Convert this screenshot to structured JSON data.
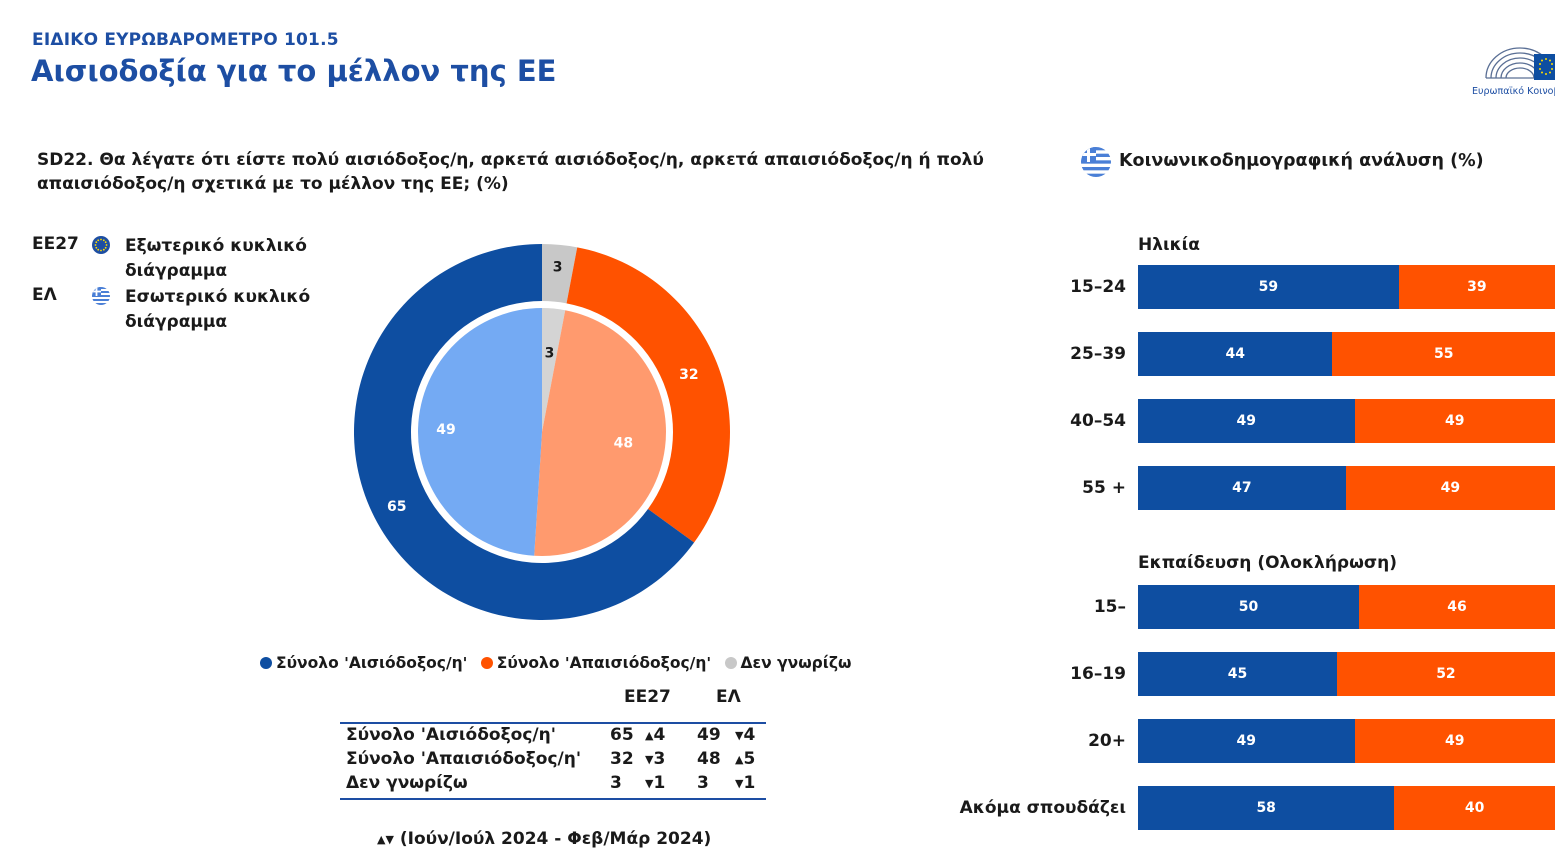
{
  "header": {
    "supertitle": "ΕΙΔΙΚΟ ΕΥΡΩΒΑΡΟΜΕΤΡΟ 101.5",
    "title": "Αισιοδοξία για το μέλλον της ΕΕ",
    "logo_text": "Ευρωπαϊκό Κοινοβούλιο"
  },
  "question": "SD22. Θα λέγατε ότι είστε πολύ αισιόδοξος/η, αρκετά αισιόδοξος/η, αρκετά απαισιόδοξος/η ή πολύ απαισιόδοξος/η σχετικά με το μέλλον της ΕΕ; (%)",
  "ring_legend": [
    {
      "label": "ΕΕ27",
      "icon": "eu-flag-icon",
      "text": "Εξωτερικό κυκλικό διάγραμμα"
    },
    {
      "label": "ΕΛ",
      "icon": "greek-flag-icon",
      "text": "Εσωτερικό κυκλικό διάγραμμα"
    }
  ],
  "colors": {
    "optimistic_outer": "#0e4ea1",
    "pessimistic_outer": "#ff5200",
    "dontknow_outer": "#c8c8c8",
    "optimistic_inner": "#74aaf3",
    "pessimistic_inner": "#ff9a6e",
    "dontknow_inner": "#d4d4d4",
    "bar_blue": "#0e4ea1",
    "bar_orange": "#ff5200",
    "title_blue": "#1d4ea3"
  },
  "chart_data": [
    {
      "type": "pie",
      "categories": [
        "Σύνολο 'Αισιόδοξος/η'",
        "Σύνολο 'Απαισιόδοξος/η'",
        "Δεν γνωρίζω"
      ],
      "series": [
        {
          "name": "ΕΕ27",
          "values": [
            65,
            32,
            3
          ]
        },
        {
          "name": "ΕΛ",
          "values": [
            49,
            48,
            3
          ]
        }
      ],
      "legend": [
        "Σύνολο 'Αισιόδοξος/η'",
        "Σύνολο 'Απαισιόδοξος/η'",
        "Δεν γνωρίζω"
      ],
      "legend_position": "bottom"
    },
    {
      "type": "table",
      "columns": [
        "",
        "ΕΕ27",
        "ΕΛ"
      ],
      "rows": [
        {
          "label": "Σύνολο 'Αισιόδοξος/η'",
          "eu_value": "65",
          "eu_arrow": "▲",
          "eu_change": "4",
          "el_value": "49",
          "el_arrow": "▼",
          "el_change": "4"
        },
        {
          "label": "Σύνολο 'Απαισιόδοξος/η'",
          "eu_value": "32",
          "eu_arrow": "▼",
          "eu_change": "3",
          "el_value": "48",
          "el_arrow": "▲",
          "el_change": "5"
        },
        {
          "label": "Δεν γνωρίζω",
          "eu_value": "3",
          "eu_arrow": "▼",
          "eu_change": "1",
          "el_value": "3",
          "el_arrow": "▼",
          "el_change": "1"
        }
      ],
      "footnote_arrows": "▲▼",
      "footnote": "(Ιούν/Ιούλ 2024 - Φεβ/Μάρ 2024)"
    },
    {
      "type": "bar",
      "stacked": true,
      "orientation": "horizontal",
      "title": "Κοινωνικοδημογραφική ανάλυση (%)",
      "groups": [
        {
          "title": "Ηλικία",
          "categories": [
            "15-24",
            "25-39",
            "40-54",
            "55 +"
          ],
          "optimistic": [
            59,
            44,
            49,
            47
          ],
          "pessimistic": [
            39,
            55,
            49,
            49
          ]
        },
        {
          "title": "Εκπαίδευση (Ολοκλήρωση)",
          "categories": [
            "15-",
            "16-19",
            "20+",
            "Ακόμα σπουδάζει"
          ],
          "optimistic": [
            50,
            45,
            49,
            58
          ],
          "pessimistic": [
            46,
            52,
            49,
            40
          ]
        }
      ]
    }
  ]
}
